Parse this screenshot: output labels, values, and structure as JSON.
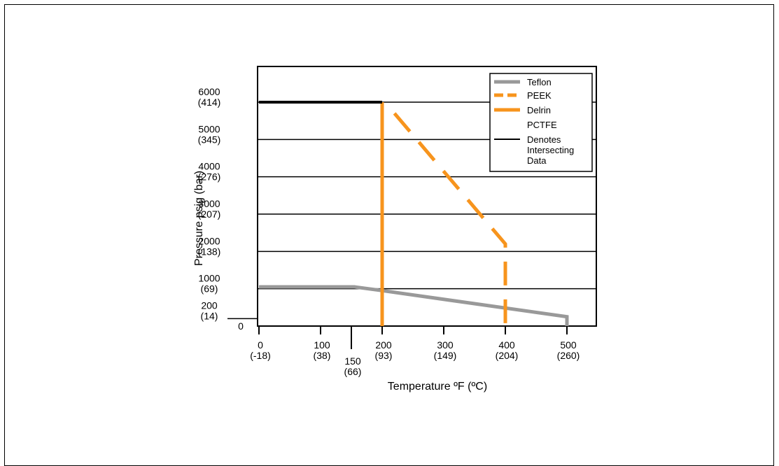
{
  "chart_data": {
    "type": "line",
    "title": "",
    "xlabel": "Temperature ºF (ºC)",
    "ylabel": "Pressure psig (bar)",
    "xlim": [
      0,
      550
    ],
    "ylim": [
      0,
      6000
    ],
    "x_ticks": [
      {
        "value": 0,
        "label": "0",
        "sub": "(-18)"
      },
      {
        "value": 100,
        "label": "100",
        "sub": "(38)"
      },
      {
        "value": 150,
        "label": "150",
        "sub": "(66)"
      },
      {
        "value": 200,
        "label": "200",
        "sub": "(93)"
      },
      {
        "value": 300,
        "label": "300",
        "sub": "(149)"
      },
      {
        "value": 400,
        "label": "400",
        "sub": "(204)"
      },
      {
        "value": 500,
        "label": "500",
        "sub": "(260)"
      }
    ],
    "y_ticks": [
      {
        "value": 6000,
        "label": "6000",
        "sub": "(414)"
      },
      {
        "value": 5000,
        "label": "5000",
        "sub": "(345)"
      },
      {
        "value": 4000,
        "label": "4000",
        "sub": "(276)"
      },
      {
        "value": 3000,
        "label": "3000",
        "sub": "(207)"
      },
      {
        "value": 2000,
        "label": "2000",
        "sub": "(138)"
      },
      {
        "value": 1000,
        "label": "1000",
        "sub": "(69)"
      },
      {
        "value": 200,
        "label": "200",
        "sub": "(14)"
      },
      {
        "value": 0,
        "label": "0",
        "sub": ""
      }
    ],
    "grid": true,
    "legend_position": "top-right",
    "series": [
      {
        "name": "Teflon",
        "color": "#999999",
        "style": "solid",
        "x": [
          0,
          155,
          200,
          500,
          500
        ],
        "y": [
          1050,
          1050,
          950,
          250,
          0
        ]
      },
      {
        "name": "PEEK",
        "color": "#F7941D",
        "style": "dashed",
        "x": [
          220,
          400,
          400
        ],
        "y": [
          5700,
          2200,
          0
        ]
      },
      {
        "name": "Delrin",
        "color": "#F7941D",
        "style": "solid",
        "x": [
          200,
          200
        ],
        "y": [
          0,
          6000
        ]
      },
      {
        "name": "PCTFE",
        "color": "#000000",
        "style": "none",
        "x": [],
        "y": []
      },
      {
        "name": "Denotes Intersecting Data",
        "color": "#000000",
        "style": "solid",
        "x": [
          0,
          200
        ],
        "y": [
          6000,
          6000
        ]
      }
    ]
  }
}
